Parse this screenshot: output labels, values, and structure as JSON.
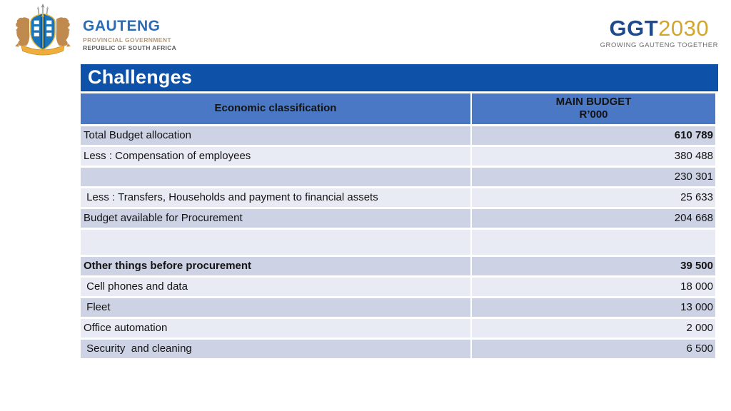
{
  "logos": {
    "gauteng": {
      "name": "GAUTENG",
      "sub1": "PROVINCIAL GOVERNMENT",
      "sub2": "REPUBLIC OF SOUTH AFRICA"
    },
    "ggt": {
      "abbr": "GGT",
      "year": "2030",
      "tagline": "GROWING GAUTENG TOGETHER"
    }
  },
  "title": "Challenges",
  "table": {
    "header": {
      "col1": "Economic classification",
      "col2_line1": "MAIN BUDGET",
      "col2_line2": "R’000"
    },
    "rows": [
      {
        "label": "Total Budget allocation",
        "value": "610 789",
        "label_bold": false,
        "value_bold": true,
        "tall": false
      },
      {
        "label": "Less : Compensation of employees",
        "value": "380 488",
        "label_bold": false,
        "value_bold": false,
        "tall": false
      },
      {
        "label": "",
        "value": "230 301",
        "label_bold": false,
        "value_bold": false,
        "tall": false
      },
      {
        "label": " Less : Transfers, Households and payment to financial assets",
        "value": "25 633",
        "label_bold": false,
        "value_bold": false,
        "tall": false
      },
      {
        "label": "Budget available for Procurement",
        "value": "204 668",
        "label_bold": false,
        "value_bold": false,
        "tall": false
      },
      {
        "label": "",
        "value": "",
        "label_bold": false,
        "value_bold": false,
        "tall": true
      },
      {
        "label": "Other things before procurement",
        "value": "39 500",
        "label_bold": true,
        "value_bold": true,
        "tall": false
      },
      {
        "label": " Cell phones and data",
        "value": "18 000",
        "label_bold": false,
        "value_bold": false,
        "tall": false
      },
      {
        "label": " Fleet",
        "value": "13 000",
        "label_bold": false,
        "value_bold": false,
        "tall": false
      },
      {
        "label": "Office automation",
        "value": "2 000",
        "label_bold": false,
        "value_bold": false,
        "tall": false
      },
      {
        "label": " Security  and cleaning",
        "value": "6 500",
        "label_bold": false,
        "value_bold": false,
        "tall": false
      }
    ]
  },
  "colors": {
    "title_bar": "#0d52a8",
    "header_bg": "#4a78c4",
    "row_dark": "#cdd2e5",
    "row_light": "#e8eaf4",
    "ggt_navy": "#1e4b8d",
    "ggt_gold": "#d2a62e",
    "gauteng_blue": "#2b6cb8",
    "gauteng_tan": "#b49a7d"
  }
}
